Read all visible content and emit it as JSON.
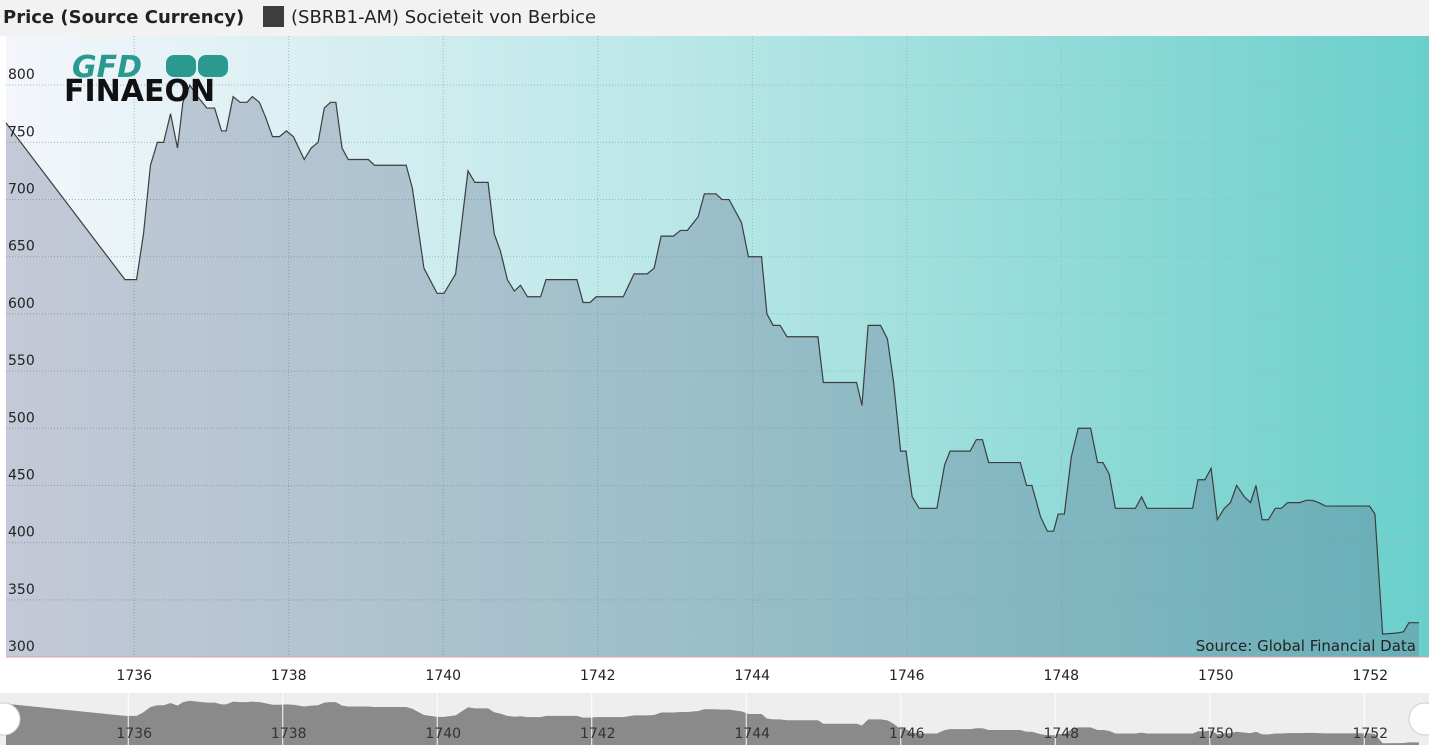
{
  "chart_data": {
    "type": "area",
    "title": "Price (Source Currency)",
    "source": "Source: Global Financial Data",
    "logo": {
      "top": "GFD",
      "bottom": "FINAEON"
    },
    "x": [
      1734.34,
      1735.88,
      1736.03,
      1736.12,
      1736.21,
      1736.3,
      1736.38,
      1736.47,
      1736.56,
      1736.63,
      1736.72,
      1736.82,
      1736.94,
      1737.04,
      1737.13,
      1737.19,
      1737.28,
      1737.37,
      1737.46,
      1737.53,
      1737.62,
      1737.7,
      1737.79,
      1737.88,
      1737.97,
      1738.06,
      1738.2,
      1738.29,
      1738.38,
      1738.46,
      1738.54,
      1738.61,
      1738.69,
      1738.77,
      1739.03,
      1739.11,
      1739.52,
      1739.6,
      1739.75,
      1739.92,
      1740.01,
      1740.16,
      1740.32,
      1740.41,
      1740.58,
      1740.66,
      1740.74,
      1740.83,
      1740.92,
      1741.0,
      1741.09,
      1741.26,
      1741.33,
      1741.73,
      1741.81,
      1741.9,
      1741.98,
      1742.33,
      1742.47,
      1742.64,
      1742.73,
      1742.82,
      1742.98,
      1743.07,
      1743.16,
      1743.3,
      1743.38,
      1743.53,
      1743.61,
      1743.7,
      1743.86,
      1743.95,
      1744.12,
      1744.19,
      1744.27,
      1744.36,
      1744.45,
      1744.85,
      1744.92,
      1745.35,
      1745.42,
      1745.5,
      1745.66,
      1745.75,
      1745.83,
      1745.92,
      1745.99,
      1746.07,
      1746.16,
      1746.39,
      1746.49,
      1746.56,
      1746.82,
      1746.9,
      1746.98,
      1747.06,
      1747.47,
      1747.55,
      1747.62,
      1747.73,
      1747.82,
      1747.9,
      1747.96,
      1748.04,
      1748.13,
      1748.22,
      1748.38,
      1748.47,
      1748.54,
      1748.62,
      1748.7,
      1748.96,
      1749.04,
      1749.11,
      1749.7,
      1749.77,
      1749.86,
      1749.94,
      1750.02,
      1750.11,
      1750.19,
      1750.27,
      1750.37,
      1750.45,
      1750.52,
      1750.6,
      1750.68,
      1750.77,
      1750.85,
      1750.93,
      1751.09,
      1751.17,
      1751.25,
      1751.33,
      1751.42,
      1751.99,
      1752.06,
      1752.16,
      1752.35,
      1752.43,
      1752.5,
      1752.63
    ],
    "series": [
      {
        "name": "(SBRB1-AM) Societeit von Berbice",
        "color": "#3d3d3d",
        "values": [
          767,
          630,
          630,
          670,
          730,
          750,
          750,
          775,
          745,
          785,
          800,
          790,
          780,
          780,
          760,
          760,
          790,
          785,
          785,
          790,
          785,
          772,
          755,
          755,
          760,
          755,
          735,
          745,
          750,
          780,
          785,
          785,
          745,
          735,
          735,
          730,
          730,
          710,
          640,
          618,
          618,
          635,
          725,
          715,
          715,
          670,
          655,
          630,
          620,
          625,
          615,
          615,
          630,
          630,
          610,
          610,
          615,
          615,
          635,
          635,
          640,
          668,
          668,
          673,
          673,
          685,
          705,
          705,
          700,
          700,
          680,
          650,
          650,
          600,
          590,
          590,
          580,
          580,
          540,
          540,
          520,
          590,
          590,
          578,
          540,
          480,
          480,
          440,
          430,
          430,
          468,
          480,
          480,
          490,
          490,
          470,
          470,
          450,
          450,
          423,
          410,
          410,
          425,
          425,
          475,
          500,
          500,
          470,
          470,
          460,
          430,
          430,
          440,
          430,
          430,
          455,
          455,
          465,
          420,
          430,
          435,
          450,
          440,
          435,
          450,
          420,
          420,
          430,
          430,
          435,
          435,
          437,
          437,
          435,
          432,
          432,
          425,
          320,
          321,
          322,
          330,
          330
        ]
      }
    ],
    "xlim": [
      1734.34,
      1752.76
    ],
    "xticks": [
      1736,
      1738,
      1740,
      1742,
      1744,
      1746,
      1748,
      1750,
      1752
    ],
    "ylim": [
      300,
      843
    ],
    "yticks": [
      300,
      350,
      400,
      450,
      500,
      550,
      600,
      650,
      700,
      750,
      800
    ],
    "grid": true
  }
}
